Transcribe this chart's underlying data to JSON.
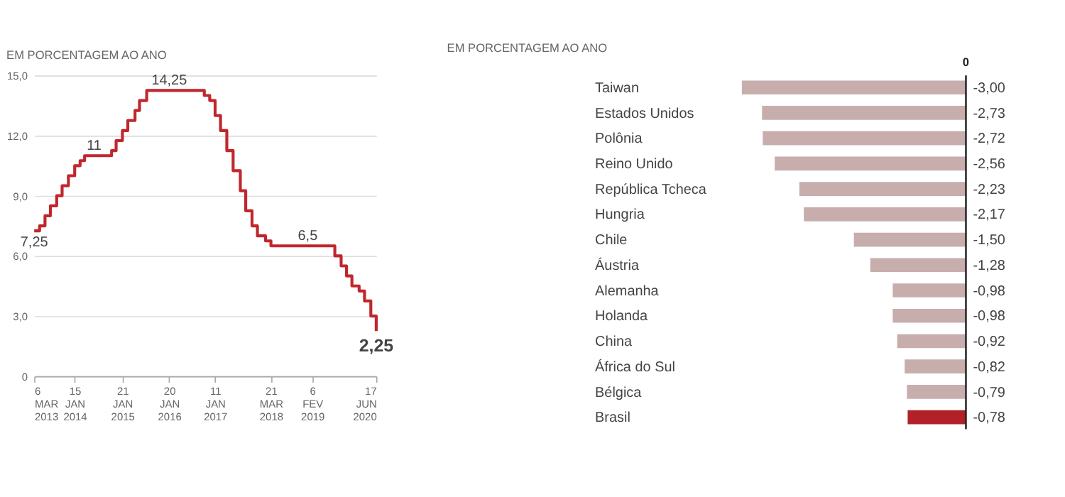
{
  "chart_data": [
    {
      "type": "step",
      "title": "EM PORCENTAGEM AO ANO",
      "x": [
        "2013-03-06",
        "2013-04-17",
        "2013-05-29",
        "2013-07-10",
        "2013-08-28",
        "2013-10-09",
        "2013-11-27",
        "2014-01-15",
        "2014-02-26",
        "2014-04-02",
        "2014-10-29",
        "2014-12-03",
        "2015-01-21",
        "2015-03-04",
        "2015-04-29",
        "2015-06-03",
        "2015-07-29",
        "2016-10-19",
        "2016-11-30",
        "2017-01-11",
        "2017-02-22",
        "2017-04-12",
        "2017-05-31",
        "2017-07-26",
        "2017-09-06",
        "2017-10-25",
        "2017-12-06",
        "2018-02-07",
        "2018-03-21",
        "2019-07-31",
        "2019-09-18",
        "2019-10-30",
        "2019-12-11",
        "2020-02-05",
        "2020-03-18",
        "2020-05-06",
        "2020-06-17"
      ],
      "series": [
        {
          "color": "#c0272d",
          "values": [
            7.25,
            7.5,
            8.0,
            8.5,
            9.0,
            9.5,
            10.0,
            10.5,
            10.75,
            11.0,
            11.25,
            11.75,
            12.25,
            12.75,
            13.25,
            13.75,
            14.25,
            14.0,
            13.75,
            13.0,
            12.25,
            11.25,
            10.25,
            9.25,
            8.25,
            7.5,
            7.0,
            6.75,
            6.5,
            6.0,
            5.5,
            5.0,
            4.5,
            4.25,
            3.75,
            3.0,
            2.25
          ]
        }
      ],
      "xlim": [
        "2013-03-06",
        "2020-06-17"
      ],
      "xticks": [
        {
          "value": "2013-03-06",
          "label": "6 MAR 2013"
        },
        {
          "value": "2014-01-15",
          "label": "15 JAN 2014"
        },
        {
          "value": "2015-01-21",
          "label": "21 JAN 2015"
        },
        {
          "value": "2016-01-20",
          "label": "20 JAN 2016"
        },
        {
          "value": "2017-01-11",
          "label": "11 JAN 2017"
        },
        {
          "value": "2018-03-21",
          "label": "21 MAR 2018"
        },
        {
          "value": "2019-02-06",
          "label": "6 FEV 2019"
        },
        {
          "value": "2020-06-17",
          "label": "17 JUN 2020"
        }
      ],
      "ylim": [
        0,
        15
      ],
      "yticks": [
        0,
        {
          "value": 3,
          "label": "3,0"
        },
        {
          "value": 6,
          "label": "6,0"
        },
        {
          "value": 9,
          "label": "9,0"
        },
        {
          "value": 12,
          "label": "12,0"
        },
        {
          "value": 15,
          "label": "15,0"
        }
      ],
      "grid": "y",
      "annotations": [
        {
          "text": "7,25",
          "x": "2013-03-06",
          "y": 7.25
        },
        {
          "text": "11",
          "x": "2014-06-15",
          "y": 11.0
        },
        {
          "text": "14,25",
          "x": "2016-01-20",
          "y": 14.25
        },
        {
          "text": "6,5",
          "x": "2019-01-01",
          "y": 6.5
        },
        {
          "text": "2,25",
          "x": "2020-06-17",
          "y": 2.25
        }
      ]
    },
    {
      "type": "bar",
      "title": "EM PORCENTAGEM AO ANO",
      "orientation": "horizontal",
      "categories": [
        "Taiwan",
        "Estados Unidos",
        "Polônia",
        "Reino Unido",
        "República Tcheca",
        "Hungria",
        "Chile",
        "Áustria",
        "Alemanha",
        "Holanda",
        "China",
        "África do Sul",
        "Bélgica",
        "Brasil"
      ],
      "values": [
        -3.0,
        -2.73,
        -2.72,
        -2.56,
        -2.23,
        -2.17,
        -1.5,
        -1.28,
        -0.98,
        -0.98,
        -0.92,
        -0.82,
        -0.79,
        -0.78
      ],
      "colors": [
        "#c8adad",
        "#c8adad",
        "#c8adad",
        "#c8adad",
        "#c8adad",
        "#c8adad",
        "#c8adad",
        "#c8adad",
        "#c8adad",
        "#c8adad",
        "#c8adad",
        "#c8adad",
        "#c8adad",
        "#b22028"
      ],
      "value_labels": [
        "-3,00",
        "-2,73",
        "-2,72",
        "-2,56",
        "-2,23",
        "-2,17",
        "-1,50",
        "-1,28",
        "-0,98",
        "-0,98",
        "-0,92",
        "-0,82",
        "-0,79",
        "-0,78"
      ],
      "annotations": [
        "0"
      ]
    }
  ]
}
